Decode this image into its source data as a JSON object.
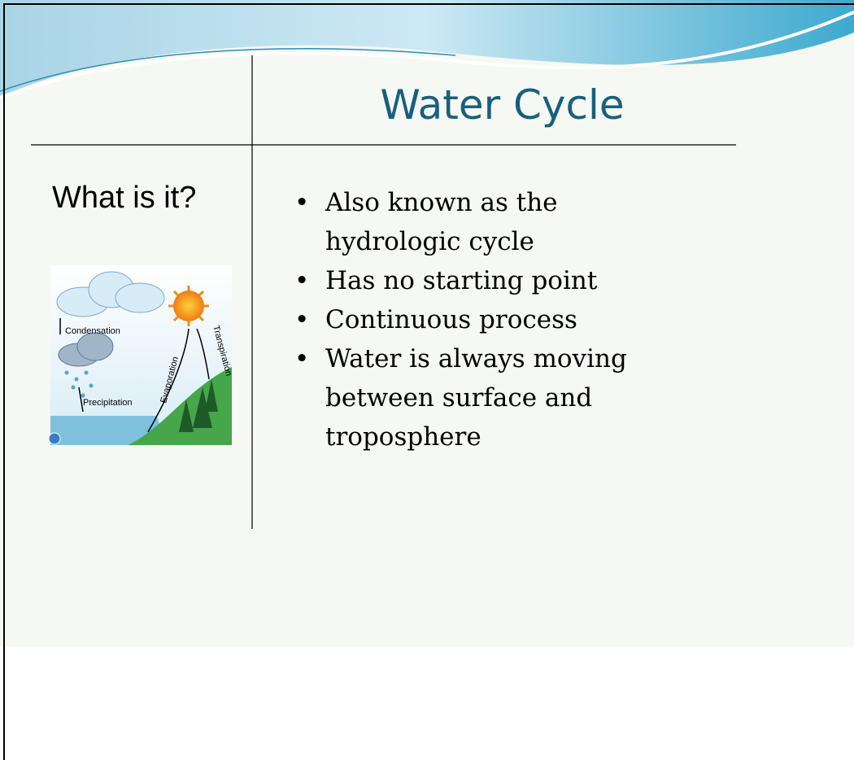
{
  "slide": {
    "title": "Water Cycle",
    "side_heading": "What is it?",
    "illustration_labels": [
      "Condensation",
      "Precipitation",
      "Evaporation",
      "Transpiration"
    ],
    "bullets": [
      "Also known as the hydrologic cycle",
      "Has no starting point",
      "Continuous process",
      "Water is always moving between surface and troposphere"
    ]
  }
}
